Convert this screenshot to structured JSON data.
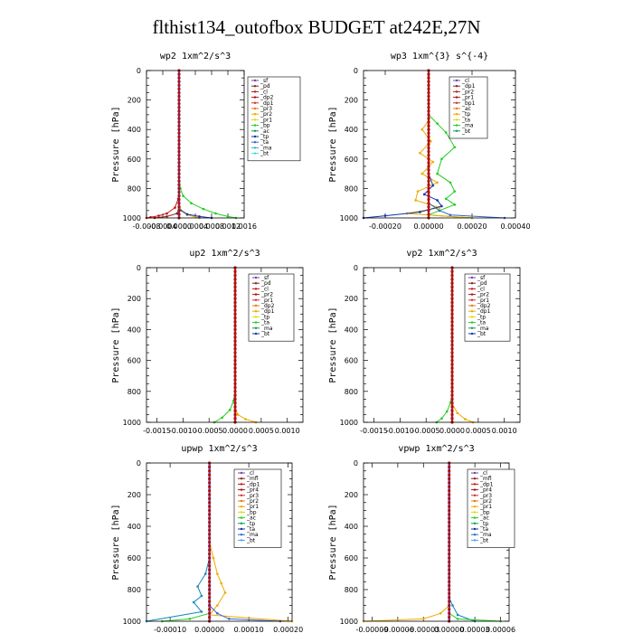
{
  "figure_title": "flthist134_outofbox  BUDGET at242E,27N",
  "chart_data": [
    {
      "type": "line",
      "title": "wp2   1xm^2/s^3",
      "ylabel": "Pressure [hPa]",
      "xlim": [
        -0.0008,
        0.0016
      ],
      "ylim": [
        1000,
        0
      ],
      "xticks": [
        "-0.0008",
        "-0.0004",
        "0.0000",
        "0.0004",
        "0.0008",
        "0.0012",
        "0.0016"
      ],
      "xtick_values": [
        -0.0008,
        -0.0004,
        0.0,
        0.0004,
        0.0008,
        0.0012,
        0.0016
      ],
      "yticks": [
        0,
        200,
        400,
        600,
        800,
        1000
      ],
      "legend": [
        "_sf",
        "_pd",
        "_cl",
        "_dp2",
        "_dp1",
        "_pr3",
        "_pr2",
        "_pr1",
        "_bp",
        "_ac",
        "_tp",
        "_ta",
        "_ma",
        "_bt"
      ],
      "series": [
        {
          "name": "_pr3",
          "color": "#22cc22",
          "x": [
            0.0,
            0.0,
            3e-05,
            0.0001,
            0.0003,
            0.0006,
            0.0009,
            0.0012,
            0.0014
          ],
          "y": [
            0,
            700,
            800,
            850,
            900,
            940,
            970,
            990,
            1000
          ]
        },
        {
          "name": "_dp1",
          "color": "#cc1111",
          "x": [
            0.0,
            0.0,
            -2e-05,
            -0.0001,
            -0.0003,
            -0.0005,
            -0.0007,
            -0.0008
          ],
          "y": [
            0,
            800,
            870,
            930,
            970,
            985,
            995,
            1000
          ]
        },
        {
          "name": "_pr2",
          "color": "#eeaa00",
          "x": [
            0.0,
            0.0,
            5e-05,
            0.0002,
            0.0005
          ],
          "y": [
            0,
            900,
            950,
            980,
            1000
          ]
        },
        {
          "name": "_tp",
          "color": "#1133aa",
          "x": [
            0.0,
            0.0,
            0.0002,
            0.0005,
            0.0008
          ],
          "y": [
            0,
            940,
            975,
            990,
            1000
          ]
        },
        {
          "name": "_pd",
          "color": "#882222",
          "x": [
            0.0,
            0.0,
            -5e-05,
            -0.0003,
            -0.0006
          ],
          "y": [
            0,
            930,
            970,
            990,
            1000
          ]
        },
        {
          "name": "_bt",
          "color": "#44dddd",
          "x": [
            0.0,
            0.0
          ],
          "y": [
            0,
            1000
          ]
        },
        {
          "name": "_sf",
          "color": "#7744aa",
          "x": [
            0.0,
            0.0
          ],
          "y": [
            0,
            1000
          ]
        }
      ]
    },
    {
      "type": "line",
      "title": "wp3   1xm^{3} s^{-4}",
      "ylabel": "Pressure [hPa]",
      "xlim": [
        -0.0003,
        0.0004
      ],
      "ylim": [
        1000,
        0
      ],
      "xticks": [
        "-0.00020",
        "0.00000",
        "0.00020",
        "0.00040"
      ],
      "xtick_values": [
        -0.0002,
        0.0,
        0.0002,
        0.0004
      ],
      "yticks": [
        0,
        200,
        400,
        600,
        800,
        1000
      ],
      "legend": [
        "_cl",
        "_dp1",
        "_pr2",
        "_pr1",
        "_bp1",
        "_ac",
        "_tp",
        "_ta",
        "_ma",
        "_bt"
      ],
      "series": [
        {
          "name": "_ac",
          "color": "#22cc22",
          "x": [
            0.0,
            0.0,
            4e-05,
            8e-05,
            0.00012,
            6e-05,
            4e-05,
            0.0001,
            0.00012,
            8e-05,
            0.00012,
            5e-05,
            0.0,
            0.0002
          ],
          "y": [
            0,
            300,
            360,
            420,
            520,
            600,
            700,
            760,
            820,
            870,
            910,
            950,
            980,
            1000
          ]
        },
        {
          "name": "_pr2",
          "color": "#eeaa00",
          "x": [
            0.0,
            0.0,
            -3e-05,
            1e-05,
            -4e-05,
            2e-05,
            -3e-05,
            4e-05,
            -5e-05,
            -6e-05,
            5e-05,
            -0.0001,
            0.0002
          ],
          "y": [
            0,
            340,
            400,
            480,
            560,
            620,
            700,
            760,
            820,
            880,
            930,
            970,
            1000
          ]
        },
        {
          "name": "_bp1",
          "color": "#1133aa",
          "x": [
            0.0,
            0.0,
            2e-05,
            -2e-05,
            4e-05,
            6e-05,
            -4e-05,
            -0.0002,
            -0.0003
          ],
          "y": [
            0,
            700,
            780,
            840,
            880,
            920,
            960,
            985,
            1000
          ]
        },
        {
          "name": "_tp",
          "color": "#3366cc",
          "x": [
            0.0,
            0.0,
            5e-05,
            0.0001,
            0.00035
          ],
          "y": [
            0,
            900,
            950,
            980,
            1000
          ]
        },
        {
          "name": "_cl",
          "color": "#cc1111",
          "x": [
            0.0,
            0.0
          ],
          "y": [
            0,
            1000
          ]
        }
      ]
    },
    {
      "type": "line",
      "title": "up2   1xm^2/s^3",
      "ylabel": "Pressure [hPa]",
      "xlim": [
        -0.0017,
        0.0013
      ],
      "ylim": [
        1000,
        0
      ],
      "xticks": [
        "-0.0015",
        "-0.0010",
        "-0.0005",
        "0.0000",
        "0.0005",
        "0.0010"
      ],
      "xtick_values": [
        -0.0015,
        -0.001,
        -0.0005,
        0.0,
        0.0005,
        0.001
      ],
      "yticks": [
        0,
        200,
        400,
        600,
        800,
        1000
      ],
      "legend": [
        "_sf",
        "_pd",
        "_cl",
        "_pr2",
        "_pr1",
        "_dp2",
        "_dp1",
        "_tp",
        "_ta",
        "_ma",
        "_bt"
      ],
      "series": [
        {
          "name": "_pr1",
          "color": "#22cc22",
          "x": [
            0.0,
            0.0,
            -3e-05,
            -0.0001,
            -0.00025,
            -0.0004
          ],
          "y": [
            0,
            800,
            860,
            920,
            970,
            1000
          ]
        },
        {
          "name": "_pr2",
          "color": "#eeaa00",
          "x": [
            0.0,
            0.0,
            5e-05,
            0.0002,
            0.0004
          ],
          "y": [
            0,
            900,
            950,
            980,
            1000
          ]
        },
        {
          "name": "_dp1",
          "color": "#aa1111",
          "x": [
            0.0,
            0.0
          ],
          "y": [
            0,
            1000
          ]
        },
        {
          "name": "_cl",
          "color": "#cc2222",
          "x": [
            0.0,
            0.0
          ],
          "y": [
            0,
            1000
          ]
        }
      ]
    },
    {
      "type": "line",
      "title": "vp2   1xm^2/s^3",
      "ylabel": "Pressure [hPa]",
      "xlim": [
        -0.0017,
        0.0013
      ],
      "ylim": [
        1000,
        0
      ],
      "xticks": [
        "-0.0015",
        "-0.0010",
        "-0.0005",
        "0.0000",
        "0.0005",
        "0.0010"
      ],
      "xtick_values": [
        -0.0015,
        -0.001,
        -0.0005,
        0.0,
        0.0005,
        0.001
      ],
      "yticks": [
        0,
        200,
        400,
        600,
        800,
        1000
      ],
      "legend": [
        "_sf",
        "_pd",
        "_cl",
        "_pr2",
        "_pr1",
        "_dp2",
        "_dp1",
        "_tp",
        "_ta",
        "_ma",
        "_bt"
      ],
      "series": [
        {
          "name": "_pr1",
          "color": "#22cc22",
          "x": [
            0.0,
            0.0,
            -3e-05,
            -0.0001,
            -0.0002,
            -0.0003
          ],
          "y": [
            0,
            820,
            870,
            930,
            975,
            1000
          ]
        },
        {
          "name": "_pr2",
          "color": "#eeaa00",
          "x": [
            0.0,
            0.0,
            0.0001,
            0.00025,
            0.0004
          ],
          "y": [
            0,
            880,
            940,
            980,
            1000
          ]
        },
        {
          "name": "_dp1",
          "color": "#aa1111",
          "x": [
            0.0,
            0.0
          ],
          "y": [
            0,
            1000
          ]
        },
        {
          "name": "_cl",
          "color": "#cc2222",
          "x": [
            0.0,
            0.0
          ],
          "y": [
            0,
            1000
          ]
        }
      ]
    },
    {
      "type": "line",
      "title": "upwp   1xm^2/s^3",
      "ylabel": "Pressure [hPa]",
      "xlim": [
        -0.00016,
        0.00021
      ],
      "ylim": [
        1000,
        0
      ],
      "xticks": [
        "-0.00010",
        "0.00000",
        "0.00010",
        "0.00020"
      ],
      "xtick_values": [
        -0.0001,
        0.0,
        0.0001,
        0.0002
      ],
      "yticks": [
        0,
        200,
        400,
        600,
        800,
        1000
      ],
      "legend": [
        "_cl",
        "_mfl",
        "_dp1",
        "_pr4",
        "_pr3",
        "_pr2",
        "_pr1",
        "_bp",
        "_ac",
        "_tp",
        "_ta",
        "_ma",
        "_bt"
      ],
      "series": [
        {
          "name": "_pr2",
          "color": "#eeaa00",
          "x": [
            0.0,
            0.0,
            1e-05,
            2e-05,
            3e-05,
            4e-05,
            2e-05,
            0.0,
            0.00021
          ],
          "y": [
            0,
            500,
            600,
            700,
            760,
            820,
            900,
            960,
            1000
          ]
        },
        {
          "name": "_tp",
          "color": "#1188bb",
          "x": [
            0.0,
            0.0,
            -1e-05,
            -3e-05,
            -2e-05,
            -4e-05,
            -2e-05,
            -0.00016
          ],
          "y": [
            0,
            600,
            700,
            780,
            840,
            880,
            940,
            1000
          ]
        },
        {
          "name": "_bp",
          "color": "#3366cc",
          "x": [
            0.0,
            0.0,
            2e-05,
            5e-05,
            0.00018
          ],
          "y": [
            0,
            900,
            950,
            985,
            1000
          ]
        },
        {
          "name": "_ac",
          "color": "#22cc22",
          "x": [
            0.0,
            0.0,
            -5e-05,
            -0.00012
          ],
          "y": [
            0,
            950,
            985,
            1000
          ]
        },
        {
          "name": "_dp1",
          "color": "#aa1111",
          "x": [
            0.0,
            0.0
          ],
          "y": [
            0,
            1000
          ]
        },
        {
          "name": "_cl",
          "color": "#7744aa",
          "x": [
            0.0,
            0.0
          ],
          "y": [
            0,
            1000
          ]
        }
      ]
    },
    {
      "type": "line",
      "title": "vpwp   1xm^2/s^3",
      "ylabel": "Pressure [hPa]",
      "xlim": [
        -0.0001,
        7e-05
      ],
      "ylim": [
        1000,
        0
      ],
      "xticks": [
        "-0.00009",
        "-0.00006",
        "-0.00003",
        "0.00000",
        "0.00003",
        "0.00006"
      ],
      "xtick_values": [
        -9e-05,
        -6e-05,
        -3e-05,
        0.0,
        3e-05,
        6e-05
      ],
      "yticks": [
        0,
        200,
        400,
        600,
        800,
        1000
      ],
      "legend": [
        "_cl",
        "_mfl",
        "_dp1",
        "_pr4",
        "_pr3",
        "_pr2",
        "_pr1",
        "_bp",
        "_ac",
        "_tp",
        "_ta",
        "_ma",
        "_bt"
      ],
      "series": [
        {
          "name": "_pr2",
          "color": "#eeaa00",
          "x": [
            0.0,
            0.0,
            -1e-05,
            -3e-05,
            -0.0001
          ],
          "y": [
            0,
            900,
            950,
            985,
            1000
          ]
        },
        {
          "name": "_tp",
          "color": "#1188bb",
          "x": [
            0.0,
            0.0,
            4e-06,
            1e-05,
            3e-05
          ],
          "y": [
            0,
            850,
            900,
            960,
            1000
          ]
        },
        {
          "name": "_ac",
          "color": "#22cc22",
          "x": [
            0.0,
            0.0,
            1e-05,
            6e-05
          ],
          "y": [
            0,
            950,
            985,
            1000
          ]
        },
        {
          "name": "_dp1",
          "color": "#aa1111",
          "x": [
            0.0,
            0.0
          ],
          "y": [
            0,
            1000
          ]
        },
        {
          "name": "_cl",
          "color": "#7744aa",
          "x": [
            0.0,
            0.0
          ],
          "y": [
            0,
            1000
          ]
        }
      ]
    }
  ]
}
